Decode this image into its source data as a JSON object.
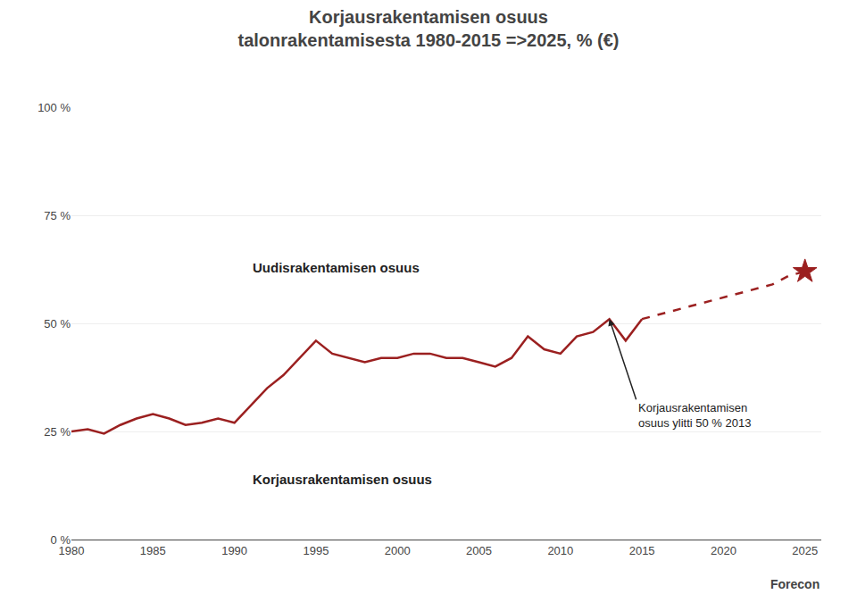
{
  "chart_data": {
    "type": "line",
    "title": "Korjausrakentamisen osuus",
    "subtitle": "talonrakentamisesta 1980-2015 =>2025, % (€)",
    "source": "Forecon",
    "series": [
      {
        "x": [
          1980,
          1981,
          1982,
          1983,
          1984,
          1985,
          1986,
          1987,
          1988,
          1989,
          1990,
          1991,
          1992,
          1993,
          1994,
          1995,
          1996,
          1997,
          1998,
          1999,
          2000,
          2001,
          2002,
          2003,
          2004,
          2005,
          2006,
          2007,
          2008,
          2009,
          2010,
          2011,
          2012,
          2013,
          2014,
          2015
        ],
        "values": [
          25,
          25.5,
          24.5,
          26.5,
          28,
          29,
          28,
          26.5,
          27,
          28,
          27,
          31,
          35,
          38,
          42,
          46,
          43,
          42,
          41,
          42,
          42,
          43,
          43,
          42,
          42,
          41,
          40,
          42,
          47,
          44,
          43,
          47,
          48,
          51,
          46,
          51
        ],
        "color": "#9B2020",
        "line_style": "solid"
      },
      {
        "x": [
          2015,
          2016,
          2017,
          2018,
          2019,
          2020,
          2021,
          2022,
          2023,
          2024,
          2025
        ],
        "values": [
          51,
          52,
          53,
          54,
          55,
          56,
          57,
          58,
          59,
          61,
          62
        ],
        "color": "#9B2020",
        "line_style": "dashed"
      },
      {
        "type": "scatter",
        "x": [
          2025
        ],
        "values": [
          62
        ],
        "color": "#9B2020",
        "marker": "star"
      }
    ],
    "annotations": [
      {
        "text": "Korjausrakentamisen\nosuus ylitti 50 % 2013",
        "x": 2013,
        "y": 51
      }
    ],
    "labels": [
      {
        "text": "Uudisrakentamisen osuus",
        "x": 1991,
        "y": 63
      },
      {
        "text": "Korjausrakentamisen osuus",
        "x": 1991,
        "y": 14
      }
    ],
    "xlim": [
      1980,
      2026
    ],
    "xticks": [
      1980,
      1985,
      1990,
      1995,
      2000,
      2005,
      2010,
      2015,
      2020,
      2025
    ],
    "ylim": [
      0,
      100
    ],
    "yticks": [
      {
        "value": 0,
        "label": "0 %"
      },
      {
        "value": 25,
        "label": "25 %"
      },
      {
        "value": 50,
        "label": "50 %"
      },
      {
        "value": 75,
        "label": "75 %"
      },
      {
        "value": 100,
        "label": "100 %"
      }
    ],
    "grid": true
  }
}
